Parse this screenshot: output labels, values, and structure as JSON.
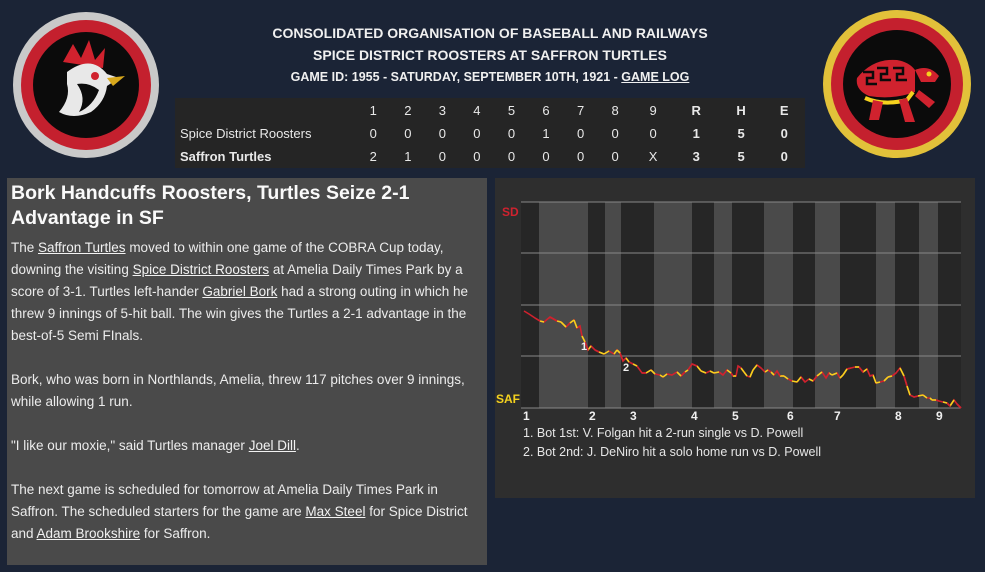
{
  "header": {
    "line1": "CONSOLIDATED ORGANISATION OF BASEBALL AND RAILWAYS",
    "line2": "SPICE DISTRICT ROOSTERS AT SAFFRON TURTLES",
    "game_info": "GAME ID: 1955 - SATURDAY, SEPTEMBER 10TH, 1921 - ",
    "game_log_link": "GAME LOG"
  },
  "logos": {
    "away": "rooster-logo",
    "home": "turtle-logo"
  },
  "boxscore": {
    "columns": [
      "1",
      "2",
      "3",
      "4",
      "5",
      "6",
      "7",
      "8",
      "9",
      "R",
      "H",
      "E"
    ],
    "rows": [
      {
        "team": "Spice District Roosters",
        "innings": [
          "0",
          "0",
          "0",
          "0",
          "0",
          "1",
          "0",
          "0",
          "0"
        ],
        "r": "1",
        "h": "5",
        "e": "0"
      },
      {
        "team": "Saffron Turtles",
        "innings": [
          "2",
          "1",
          "0",
          "0",
          "0",
          "0",
          "0",
          "0",
          "X"
        ],
        "r": "3",
        "h": "5",
        "e": "0"
      }
    ]
  },
  "article": {
    "headline": "Bork Handcuffs Roosters, Turtles Seize 2-1 Advantage in SF",
    "p1": {
      "t1": "The ",
      "l1": "Saffron Turtles",
      "t2": " moved to within one game of the COBRA Cup today, downing the visiting ",
      "l2": "Spice District Roosters",
      "t3": " at Amelia Daily Times Park by a score of 3-1. Turtles left-hander ",
      "l3": "Gabriel Bork",
      "t4": " had a strong outing in which he threw 9 innings of 5-hit ball. The win gives the Turtles a 2-1 advantage in the best-of-5 Semi FInals."
    },
    "p2": "Bork, who was born in Northlands, Amelia, threw 117 pitches over 9 innings, while allowing 1 run.",
    "p3": {
      "t1": "\"I like our moxie,\" said Turtles manager ",
      "l1": "Joel Dill",
      "t2": "."
    },
    "p4": {
      "t1": "The next game is scheduled for tomorrow at Amelia Daily Times Park in Saffron. The scheduled starters for the game are ",
      "l1": "Max Steel",
      "t2": " for Spice District and ",
      "l2": "Adam Brookshire",
      "t3": " for Saffron."
    }
  },
  "win_prob_chart": {
    "top_label": "SD",
    "bottom_label": "SAF",
    "top_color": "#d0222e",
    "bottom_color": "#f5d21e",
    "inning_labels": [
      "1",
      "2",
      "3",
      "4",
      "5",
      "6",
      "7",
      "8",
      "9"
    ],
    "marker_labels": [
      "1",
      "2"
    ],
    "notes": [
      "1. Bot 1st: V. Folgan hit a 2-run single vs D. Powell",
      "2. Bot 2nd: J. DeNiro hit a solo home run vs D. Powell"
    ]
  }
}
